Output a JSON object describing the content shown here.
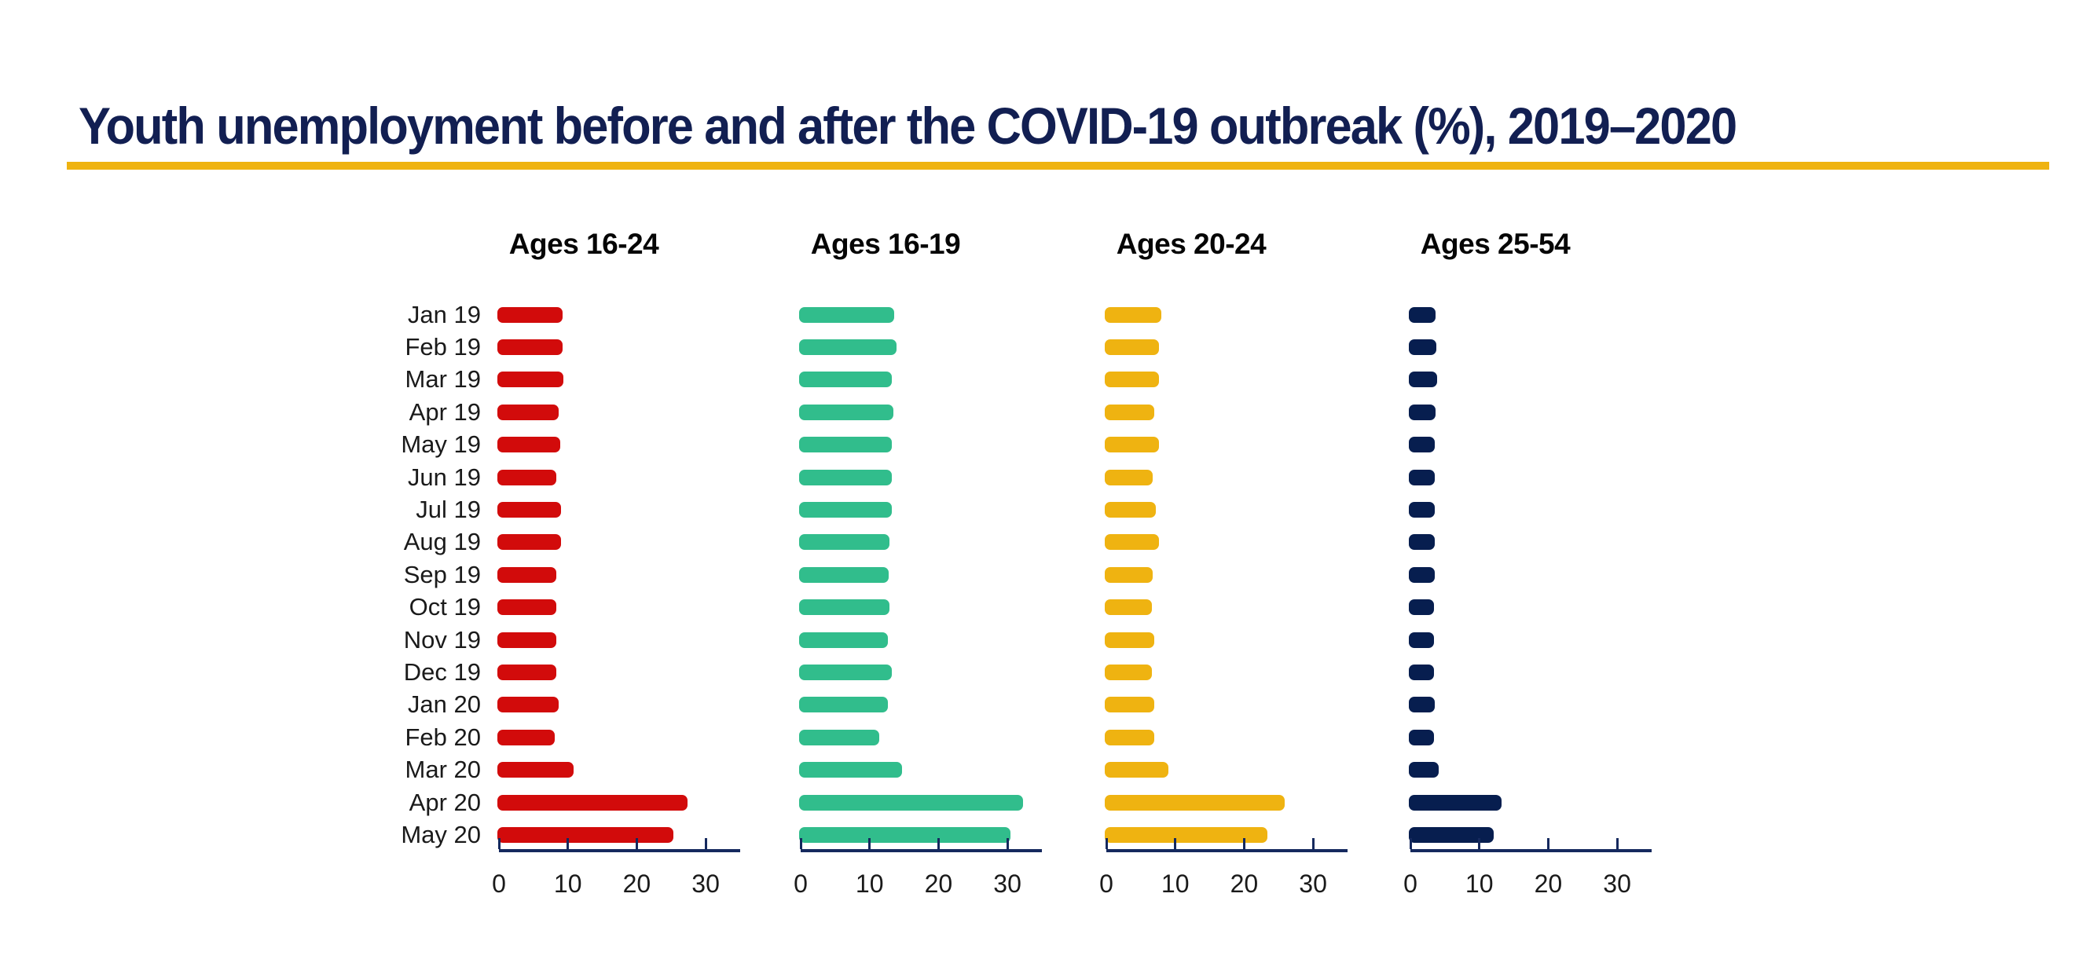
{
  "title": "Youth unemployment before and after the COVID-19 outbreak (%), 2019–2020",
  "colors": {
    "title_navy": "#121F52",
    "accent_gold": "#EFB310",
    "axis_navy": "#15295E",
    "label_gray": "#1a1a1a"
  },
  "chart_data": {
    "type": "bar",
    "orientation": "horizontal",
    "title": "Youth unemployment before and after the COVID-19 outbreak (%), 2019–2020",
    "xlabel": "",
    "ylabel": "",
    "xlim": [
      0,
      35
    ],
    "x_ticks": [
      0,
      10,
      20,
      30
    ],
    "grid": false,
    "legend_position": "none",
    "categories": [
      "Jan 19",
      "Feb 19",
      "Mar 19",
      "Apr 19",
      "May 19",
      "Jun 19",
      "Jul 19",
      "Aug 19",
      "Sep 19",
      "Oct 19",
      "Nov 19",
      "Dec 19",
      "Jan 20",
      "Feb 20",
      "Mar 20",
      "Apr 20",
      "May 20"
    ],
    "series": [
      {
        "name": "Ages 16-24",
        "color": "#D20B0B",
        "values": [
          9.2,
          9.2,
          9.3,
          8.7,
          8.9,
          8.3,
          9.0,
          9.0,
          8.3,
          8.3,
          8.3,
          8.3,
          8.7,
          8.1,
          10.8,
          27.4,
          25.3
        ]
      },
      {
        "name": "Ages 16-19",
        "color": "#31BD8C",
        "values": [
          13.6,
          13.9,
          13.2,
          13.5,
          13.2,
          13.2,
          13.2,
          12.9,
          12.8,
          12.9,
          12.6,
          13.2,
          12.6,
          11.4,
          14.7,
          32.3,
          30.5
        ]
      },
      {
        "name": "Ages 20-24",
        "color": "#EFB311",
        "values": [
          8.0,
          7.6,
          7.6,
          6.9,
          7.6,
          6.7,
          7.2,
          7.6,
          6.7,
          6.6,
          6.9,
          6.6,
          6.9,
          6.9,
          9.0,
          25.9,
          23.4
        ]
      },
      {
        "name": "Ages 25-54",
        "color": "#071E4F",
        "values": [
          3.7,
          3.8,
          3.9,
          3.6,
          3.5,
          3.5,
          3.5,
          3.5,
          3.5,
          3.4,
          3.4,
          3.4,
          3.5,
          3.4,
          4.1,
          13.2,
          12.1
        ]
      }
    ]
  }
}
